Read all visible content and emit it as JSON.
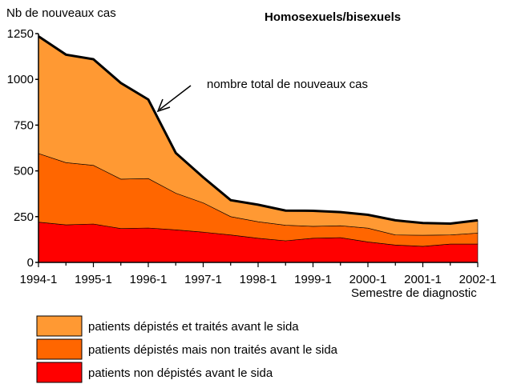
{
  "chart_data": {
    "type": "area",
    "stacked": true,
    "title": "Homosexuels/bisexuels",
    "ylabel": "Nb de nouveaux cas",
    "xlabel": "Semestre de diagnostic",
    "ylim": [
      0,
      1250
    ],
    "yticks": [
      0,
      250,
      500,
      750,
      1000,
      1250
    ],
    "xticks": [
      "1994-1",
      "1995-1",
      "1996-1",
      "1997-1",
      "1998-1",
      "1999-1",
      "2000-1",
      "2001-1",
      "2002-1"
    ],
    "x": [
      "1994-1",
      "1994-2",
      "1995-1",
      "1995-2",
      "1996-1",
      "1996-2",
      "1997-1",
      "1997-2",
      "1998-1",
      "1998-2",
      "1999-1",
      "1999-2",
      "2000-1",
      "2000-2",
      "2001-1",
      "2001-2",
      "2002-1"
    ],
    "series": [
      {
        "name": "patients non dépistés avant le sida",
        "color": "#ff0000",
        "values": [
          220,
          205,
          210,
          185,
          188,
          178,
          165,
          150,
          132,
          118,
          132,
          135,
          112,
          95,
          88,
          100,
          100
        ]
      },
      {
        "name": "patients dépistés mais non traités avant le sida",
        "color": "#ff6600",
        "values": [
          375,
          340,
          320,
          270,
          270,
          200,
          160,
          100,
          90,
          85,
          65,
          65,
          75,
          55,
          60,
          50,
          60
        ]
      },
      {
        "name": "patients dépistés et traités avant le sida",
        "color": "#ff9933",
        "values": [
          640,
          590,
          580,
          525,
          432,
          220,
          140,
          90,
          93,
          80,
          85,
          75,
          73,
          80,
          67,
          62,
          70
        ]
      }
    ],
    "annotation": "nombre total de nouveaux cas",
    "annotation_point": {
      "x": "1996-1",
      "y": 890
    }
  }
}
